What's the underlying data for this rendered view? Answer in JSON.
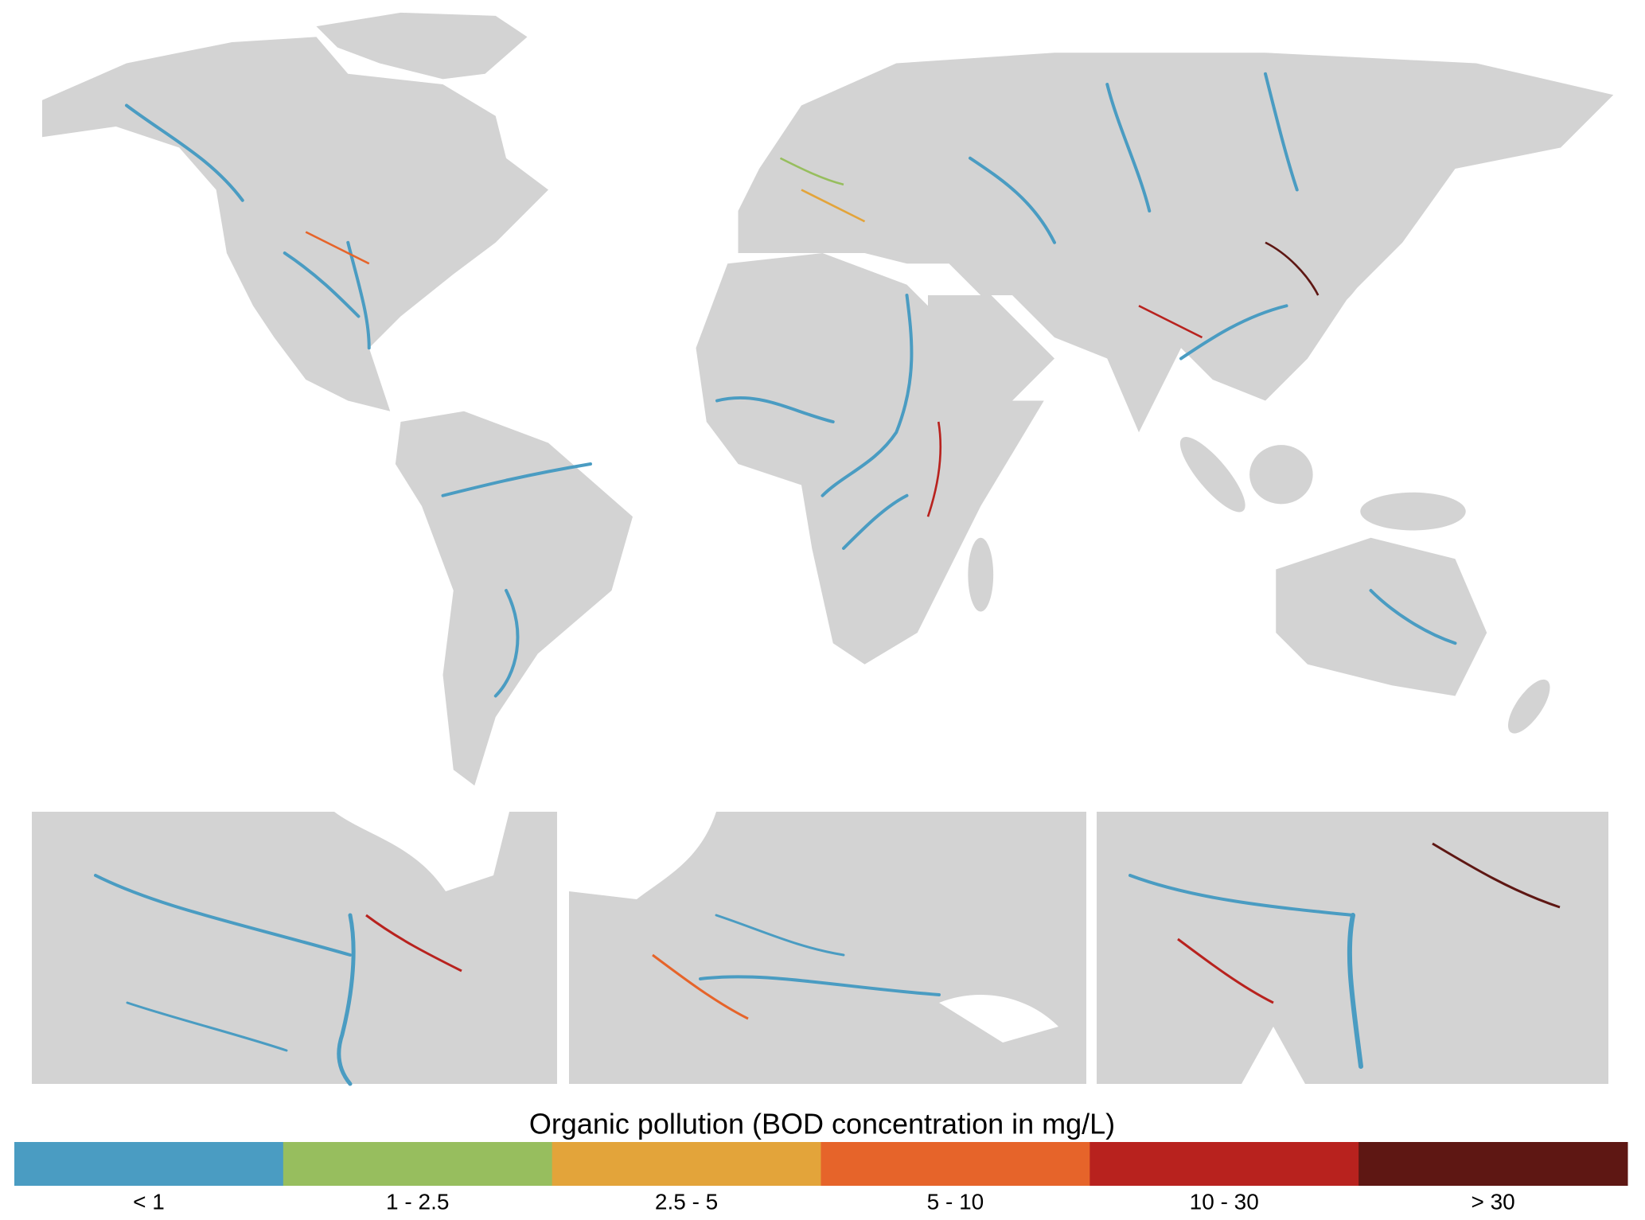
{
  "legend": {
    "title": "Organic pollution (BOD concentration in mg/L)",
    "items": [
      {
        "label": "< 1",
        "color": "#4a9cc2"
      },
      {
        "label": "1 - 2.5",
        "color": "#97be5e"
      },
      {
        "label": "2.5 - 5",
        "color": "#e3a43a"
      },
      {
        "label": "5 - 10",
        "color": "#e6642a"
      },
      {
        "label": "10 - 30",
        "color": "#b8221e"
      },
      {
        "label": "> 30",
        "color": "#5e1713"
      }
    ]
  }
}
